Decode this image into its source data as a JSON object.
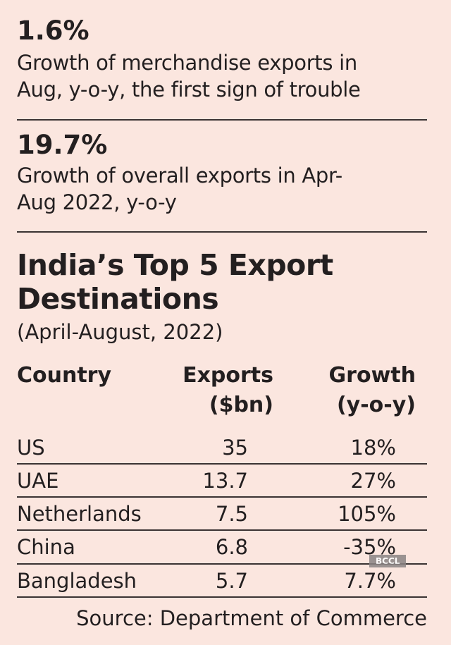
{
  "stats": [
    {
      "value": "1.6%",
      "description_lines": [
        "Growth of merchandise exports in",
        "Aug, y-o-y, the first sign of trouble"
      ]
    },
    {
      "value": "19.7%",
      "description_lines": [
        "Growth of overall exports in Apr-",
        "Aug 2022, y-o-y"
      ]
    }
  ],
  "table": {
    "title_lines": [
      "India’s Top 5 Export",
      "Destinations"
    ],
    "subtitle": "(April-August, 2022)",
    "headers": {
      "country": [
        "Country"
      ],
      "exports": [
        "Exports",
        "($bn)"
      ],
      "growth": [
        "Growth",
        "(y-o-y)"
      ]
    },
    "rows": [
      {
        "country": "US",
        "exports": "35",
        "growth": "18%"
      },
      {
        "country": "UAE",
        "exports": "13.7",
        "growth": "27%"
      },
      {
        "country": "Netherlands",
        "exports": "7.5",
        "growth": "105%"
      },
      {
        "country": "China",
        "exports": "6.8",
        "growth": "-35%"
      },
      {
        "country": "Bangladesh",
        "exports": "5.7",
        "growth": "7.7%"
      }
    ],
    "source": "Source: Department of Commerce"
  },
  "watermark": "BCCL",
  "colors": {
    "background": "#fbe6df",
    "text": "#231f20"
  }
}
